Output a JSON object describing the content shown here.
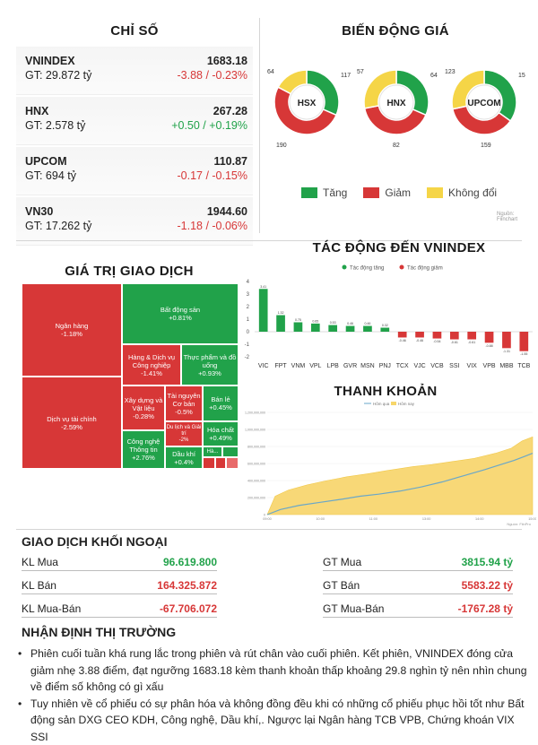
{
  "index_panel": {
    "title": "CHỈ SỐ",
    "rows": [
      {
        "name": "VNINDEX",
        "value": "1683.18",
        "gt": "GT: 29.872 tỷ",
        "change": "-3.88 / -0.23%",
        "dir": "neg"
      },
      {
        "name": "HNX",
        "value": "267.28",
        "gt": "GT: 2.578 tỷ",
        "change": "+0.50 / +0.19%",
        "dir": "pos"
      },
      {
        "name": "UPCOM",
        "value": "110.87",
        "gt": "GT: 694 tỷ",
        "change": "-0.17 / -0.15%",
        "dir": "neg"
      },
      {
        "name": "VN30",
        "value": "1944.60",
        "gt": "GT: 17.262 tỷ",
        "change": "-1.18 / -0.06%",
        "dir": "neg"
      }
    ]
  },
  "price_move": {
    "title": "BIẾN ĐỘNG GIÁ",
    "source": "Nguồn: Fiinchart",
    "colors": {
      "up": "#21a24a",
      "down": "#d73737",
      "flat": "#f5d547"
    },
    "legend": {
      "up": "Tăng",
      "down": "Giảm",
      "flat": "Không đổi"
    },
    "donuts": [
      {
        "label": "HSX",
        "up": 117,
        "down": 190,
        "flat": 64
      },
      {
        "label": "HNX",
        "up": 64,
        "down": 82,
        "flat": 57
      },
      {
        "label": "UPCOM",
        "up": 151,
        "down": 159,
        "flat": 123
      }
    ]
  },
  "treemap": {
    "title": "GIÁ TRỊ GIAO DỊCH",
    "cells": [
      {
        "label": "Ngân hàng",
        "change": "-1.18%",
        "dir": "neg"
      },
      {
        "label": "Dịch vụ tài chính",
        "change": "-2.59%",
        "dir": "neg"
      },
      {
        "label": "Bất động sản",
        "change": "+0.81%",
        "dir": "pos"
      },
      {
        "label": "Hàng & Dịch vụ Công nghiệp",
        "change": "-1.41%",
        "dir": "neg"
      },
      {
        "label": "Thực phẩm và đồ uống",
        "change": "+0.93%",
        "dir": "pos"
      },
      {
        "label": "Xây dựng và Vật liệu",
        "change": "-0.28%",
        "dir": "neg"
      },
      {
        "label": "Tài nguyên Cơ bản",
        "change": "-0.5%",
        "dir": "neg"
      },
      {
        "label": "Bán lẻ",
        "change": "+0.45%",
        "dir": "pos"
      },
      {
        "label": "Công nghệ Thông tin",
        "change": "+2.76%",
        "dir": "pos"
      },
      {
        "label": "Du lịch và Giải trí",
        "change": "-2%",
        "dir": "neg"
      },
      {
        "label": "Hóa chất",
        "change": "+0.49%",
        "dir": "pos"
      },
      {
        "label": "Dầu khí",
        "change": "+0.4%",
        "dir": "pos"
      },
      {
        "label": "Hà...",
        "change": "",
        "dir": "pos"
      }
    ]
  },
  "impact": {
    "title": "TÁC ĐỘNG ĐẾN VNINDEX",
    "legend_up": "Tác động tăng",
    "legend_down": "Tác động giảm",
    "chart_data": {
      "type": "bar",
      "categories": [
        "VIC",
        "FPT",
        "VNM",
        "VPL",
        "LPB",
        "GVR",
        "MSN",
        "PNJ",
        "TCX",
        "VJC",
        "VCB",
        "SSI",
        "VIX",
        "VPB",
        "MBB",
        "TCB"
      ],
      "values": [
        3.41,
        1.32,
        0.75,
        0.65,
        0.53,
        0.46,
        0.46,
        0.32,
        -0.46,
        -0.46,
        -0.54,
        -0.61,
        -0.61,
        -0.88,
        -1.31,
        -1.55
      ],
      "ylim": [
        -2,
        4
      ],
      "yticks": [
        "4",
        "3",
        "2",
        "1",
        "0",
        "-1",
        "-2"
      ]
    }
  },
  "liquidity": {
    "title": "THANH KHOẢN",
    "legend_a": "Hôm qua",
    "legend_b": "Hôm nay",
    "yticks": [
      "1,200,000,000",
      "1,000,000,000",
      "800,000,000",
      "600,000,000",
      "400,000,000",
      "200,000,000",
      "0"
    ],
    "xticks": [
      "09:00",
      "10:00",
      "11:00",
      "13:00",
      "14:00",
      "15:00"
    ],
    "source": "Nguồn: FiinPro"
  },
  "foreign": {
    "title": "GIAO DỊCH KHỐI NGOẠI",
    "left": [
      {
        "label": "KL Mua",
        "value": "96.619.800",
        "dir": "pos"
      },
      {
        "label": "KL Bán",
        "value": "164.325.872",
        "dir": "neg"
      },
      {
        "label": "KL Mua-Bán",
        "value": "-67.706.072",
        "dir": "neg"
      }
    ],
    "right": [
      {
        "label": "GT Mua",
        "value": "3815.94 tỷ",
        "dir": "pos"
      },
      {
        "label": "GT Bán",
        "value": "5583.22 tỷ",
        "dir": "neg"
      },
      {
        "label": "GT Mua-Bán",
        "value": "-1767.28 tỷ",
        "dir": "neg"
      }
    ]
  },
  "market_view": {
    "title": "NHẬN ĐỊNH THỊ TRƯỜNG",
    "bullets": [
      "Phiên cuối tuần khá rung lắc trong phiên và rút chân vào cuối phiên. Kết phiên, VNINDEX đóng cửa giảm nhẹ 3.88 điểm, đạt ngưỡng 1683.18 kèm thanh khoản thấp khoảng 29.8 nghìn tỷ nên nhìn chung về điểm số không có gì xấu",
      "Tuy nhiên về cổ phiếu có sự phân hóa và không đồng đều khi có những cổ phiếu phục hồi tốt như Bất động sản DXG CEO KDH, Công nghệ, Dầu khí,. Ngược lại Ngân hàng TCB VPB, Chứng khoán VIX SSI"
    ]
  }
}
